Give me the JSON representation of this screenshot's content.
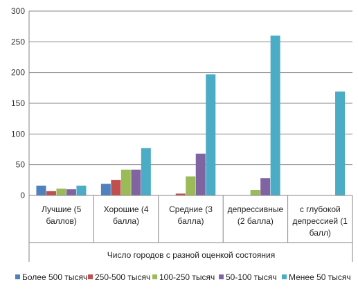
{
  "chart_data": {
    "type": "bar",
    "title": "",
    "xlabel": "Число городов с разной оценкой состояния",
    "ylabel": "",
    "ylim": [
      0,
      300
    ],
    "yticks": [
      0,
      50,
      100,
      150,
      200,
      250,
      300
    ],
    "grid": true,
    "legend_position": "bottom",
    "categories": [
      [
        "Лучшие (5",
        "баллов)"
      ],
      [
        "Хорошие (4",
        "балла)"
      ],
      [
        "Средние (3",
        "балла)"
      ],
      [
        "депрессивные",
        "(2 балла)"
      ],
      [
        "с глубокой",
        "депрессией (1",
        "балл)"
      ]
    ],
    "series": [
      {
        "name": "Более 500 тысяч",
        "color": "#4F81BD",
        "values": [
          16,
          19,
          0,
          0,
          0
        ]
      },
      {
        "name": "250-500 тысяч",
        "color": "#C0504D",
        "values": [
          7,
          25,
          3,
          0,
          0
        ]
      },
      {
        "name": "100-250 тысяч",
        "color": "#9BBB59",
        "values": [
          11,
          42,
          31,
          9,
          0
        ]
      },
      {
        "name": "50-100 тысяч",
        "color": "#8064A2",
        "values": [
          10,
          42,
          68,
          28,
          0
        ]
      },
      {
        "name": "Менее 50 тысяч",
        "color": "#4BACC6",
        "values": [
          16,
          77,
          197,
          260,
          169
        ]
      }
    ]
  }
}
